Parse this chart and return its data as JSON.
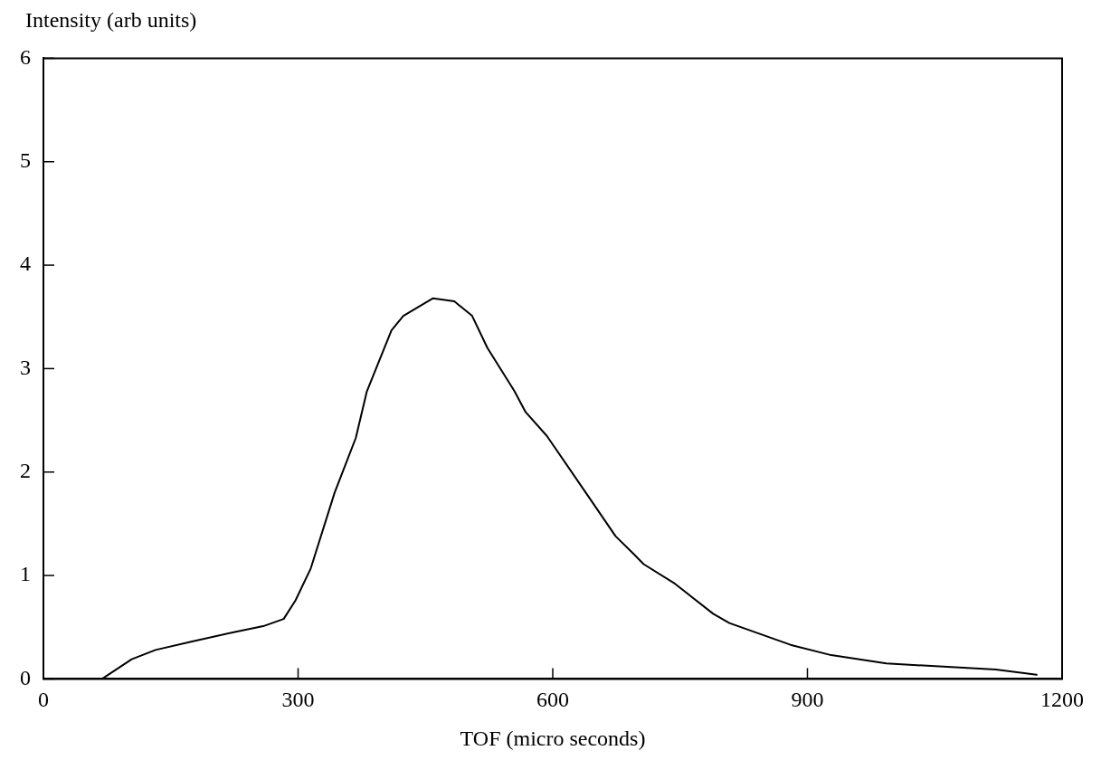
{
  "chart_data": {
    "type": "line",
    "xlabel": "TOF (micro seconds)",
    "ylabel": "Intensity (arb units)",
    "x": [
      69,
      104,
      132,
      174,
      223,
      259,
      283,
      297,
      315,
      343,
      368,
      381,
      410,
      424,
      459,
      484,
      505,
      523,
      555,
      568,
      593,
      639,
      674,
      695,
      707,
      744,
      789,
      808,
      880,
      928,
      993,
      1122,
      1170
    ],
    "values": [
      0.0,
      0.19,
      0.28,
      0.36,
      0.45,
      0.51,
      0.58,
      0.76,
      1.07,
      1.8,
      2.33,
      2.78,
      3.37,
      3.51,
      3.68,
      3.65,
      3.51,
      3.2,
      2.78,
      2.58,
      2.35,
      1.8,
      1.38,
      1.21,
      1.11,
      0.92,
      0.63,
      0.54,
      0.33,
      0.23,
      0.15,
      0.09,
      0.04
    ],
    "color": "#000000",
    "xlim": [
      0,
      1200
    ],
    "xticks": [
      0,
      300,
      600,
      900,
      1200
    ],
    "ylim": [
      0,
      6
    ],
    "yticks": [
      0,
      1,
      2,
      3,
      4,
      5,
      6
    ],
    "grid": false,
    "legend": false,
    "marker": "none",
    "line_style": "solid"
  }
}
